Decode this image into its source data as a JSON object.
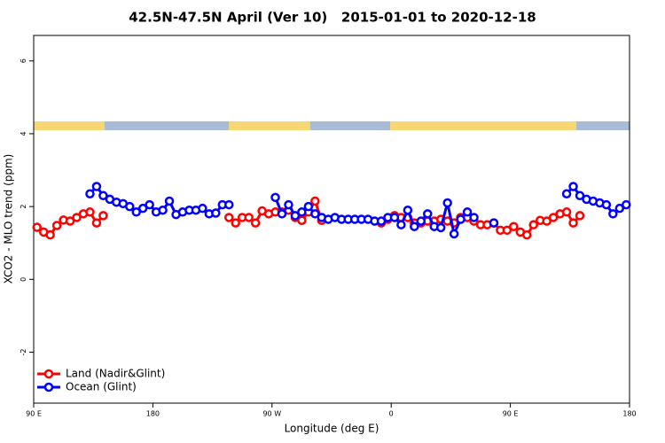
{
  "chart_data": {
    "type": "line",
    "title": "42.5N-47.5N April (Ver 10)   2015-01-01 to 2020-12-18",
    "x_label": "Longitude (deg E)",
    "y_label": "XCO2 - MLO trend (ppm)",
    "x": [
      92.5,
      97.5,
      102.5,
      107.5,
      112.5,
      117.5,
      122.5,
      127.5,
      132.5,
      137.5,
      142.5,
      147.5,
      152.5,
      157.5,
      162.5,
      167.5,
      172.5,
      177.5,
      182.5,
      187.5,
      192.5,
      197.5,
      202.5,
      207.5,
      212.5,
      217.5,
      222.5,
      227.5,
      232.5,
      237.5,
      242.5,
      247.5,
      252.5,
      257.5,
      262.5,
      267.5,
      272.5,
      277.5,
      282.5,
      287.5,
      292.5,
      297.5,
      302.5,
      307.5,
      312.5,
      317.5,
      322.5,
      327.5,
      332.5,
      337.5,
      342.5,
      347.5,
      352.5,
      357.5,
      362.5,
      367.5,
      372.5,
      377.5,
      382.5,
      387.5,
      392.5,
      397.5,
      402.5,
      407.5,
      412.5,
      417.5,
      422.5,
      427.5,
      432.5,
      437.5,
      442.5,
      447.5,
      452.5,
      457.5,
      462.5,
      467.5,
      472.5,
      477.5,
      482.5,
      487.5,
      492.5,
      497.5,
      502.5,
      507.5,
      512.5,
      517.5,
      522.5,
      527.5,
      532.5,
      537.5
    ],
    "series": [
      {
        "name": "Land (Nadir&Glint)",
        "color": "#ff0000",
        "values": [
          1.43,
          1.3,
          1.22,
          1.48,
          1.63,
          1.6,
          1.7,
          1.8,
          1.85,
          1.55,
          1.75,
          null,
          null,
          null,
          null,
          null,
          null,
          null,
          null,
          null,
          null,
          null,
          null,
          null,
          null,
          null,
          null,
          null,
          null,
          1.7,
          1.55,
          1.7,
          1.7,
          1.55,
          1.88,
          1.8,
          1.85,
          1.85,
          1.9,
          1.7,
          1.62,
          1.85,
          2.15,
          1.62,
          null,
          null,
          null,
          null,
          null,
          null,
          null,
          null,
          1.55,
          1.65,
          1.75,
          1.7,
          1.7,
          1.55,
          1.55,
          1.6,
          1.6,
          1.65,
          1.6,
          1.55,
          1.7,
          1.7,
          1.6,
          1.5,
          1.5,
          1.55,
          1.35,
          1.35,
          1.45,
          1.3,
          1.22,
          1.5,
          1.62,
          1.6,
          1.7,
          1.8,
          1.85,
          1.55,
          1.75,
          null,
          null,
          null,
          null,
          null,
          null,
          null
        ]
      },
      {
        "name": "Ocean (Glint)",
        "color": "#0000ff",
        "values": [
          null,
          null,
          null,
          null,
          null,
          null,
          null,
          null,
          2.35,
          2.55,
          2.3,
          2.2,
          2.12,
          2.08,
          2.0,
          1.85,
          1.95,
          2.05,
          1.85,
          1.9,
          2.15,
          1.78,
          1.85,
          1.9,
          1.9,
          1.95,
          1.8,
          1.82,
          2.05,
          2.05,
          null,
          null,
          null,
          null,
          null,
          null,
          2.25,
          1.8,
          2.05,
          1.75,
          1.85,
          2.0,
          1.8,
          1.7,
          1.65,
          1.7,
          1.65,
          1.65,
          1.65,
          1.65,
          1.65,
          1.6,
          1.6,
          1.7,
          1.7,
          1.5,
          1.9,
          1.45,
          1.6,
          1.8,
          1.45,
          1.42,
          2.1,
          1.25,
          1.65,
          1.85,
          1.7,
          null,
          null,
          1.55,
          null,
          null,
          null,
          null,
          null,
          null,
          null,
          null,
          null,
          null,
          2.35,
          2.55,
          2.3,
          2.2,
          2.15,
          2.1,
          2.05,
          1.8,
          1.95,
          2.05
        ]
      }
    ],
    "xlim": [
      90,
      540
    ],
    "ylim": [
      -3.4,
      6.7
    ],
    "xticks": [
      {
        "value": 90,
        "label": "90 E"
      },
      180,
      {
        "value": 270,
        "label": "90 W"
      },
      {
        "value": 360,
        "label": "0"
      },
      {
        "value": 450,
        "label": "90 E"
      },
      {
        "value": 540,
        "label": "180"
      }
    ],
    "yticks": [
      -2,
      0,
      2,
      4,
      6
    ],
    "legend": "bottom-left"
  }
}
